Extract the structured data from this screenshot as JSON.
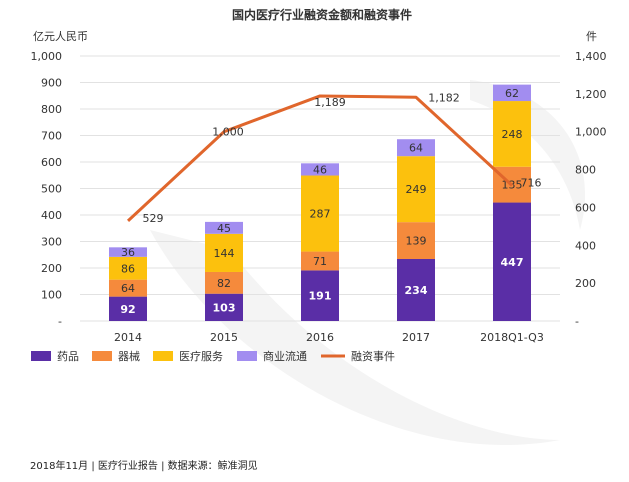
{
  "chart_data": {
    "type": "bar",
    "stacked": true,
    "title": "国内医疗行业融资金额和融资事件",
    "categories": [
      "2014",
      "2015",
      "2016",
      "2017",
      "2018Q1-Q3"
    ],
    "ylabel_left": "亿元人民币",
    "ylabel_right": "件",
    "ylim_left": [
      0,
      1000
    ],
    "ylim_right": [
      0,
      1400
    ],
    "yticks_left": [
      "-",
      "100",
      "200",
      "300",
      "400",
      "500",
      "600",
      "700",
      "800",
      "900",
      "1,000"
    ],
    "yticks_right": [
      "-",
      "200",
      "400",
      "600",
      "800",
      "1,000",
      "1,200",
      "1,400"
    ],
    "series": [
      {
        "name": "药品",
        "color": "#5a2ea6",
        "values": [
          92,
          103,
          191,
          234,
          447
        ]
      },
      {
        "name": "器械",
        "color": "#f58a3c",
        "values": [
          64,
          82,
          71,
          139,
          135
        ]
      },
      {
        "name": "医疗服务",
        "color": "#fcc10d",
        "values": [
          86,
          144,
          287,
          249,
          248
        ]
      },
      {
        "name": "商业流通",
        "color": "#a28df0",
        "values": [
          36,
          45,
          46,
          64,
          62
        ]
      }
    ],
    "line": {
      "name": "融资事件",
      "color": "#e0662c",
      "axis": "right",
      "values": [
        529,
        1000,
        1189,
        1182,
        716
      ],
      "labels": [
        "529",
        "1,000",
        "1,189",
        "1,182",
        "716"
      ]
    },
    "legend": "bottom-left"
  },
  "footer": "2018年11月 | 医疗行业报告 | 数据来源：鲸准洞见"
}
